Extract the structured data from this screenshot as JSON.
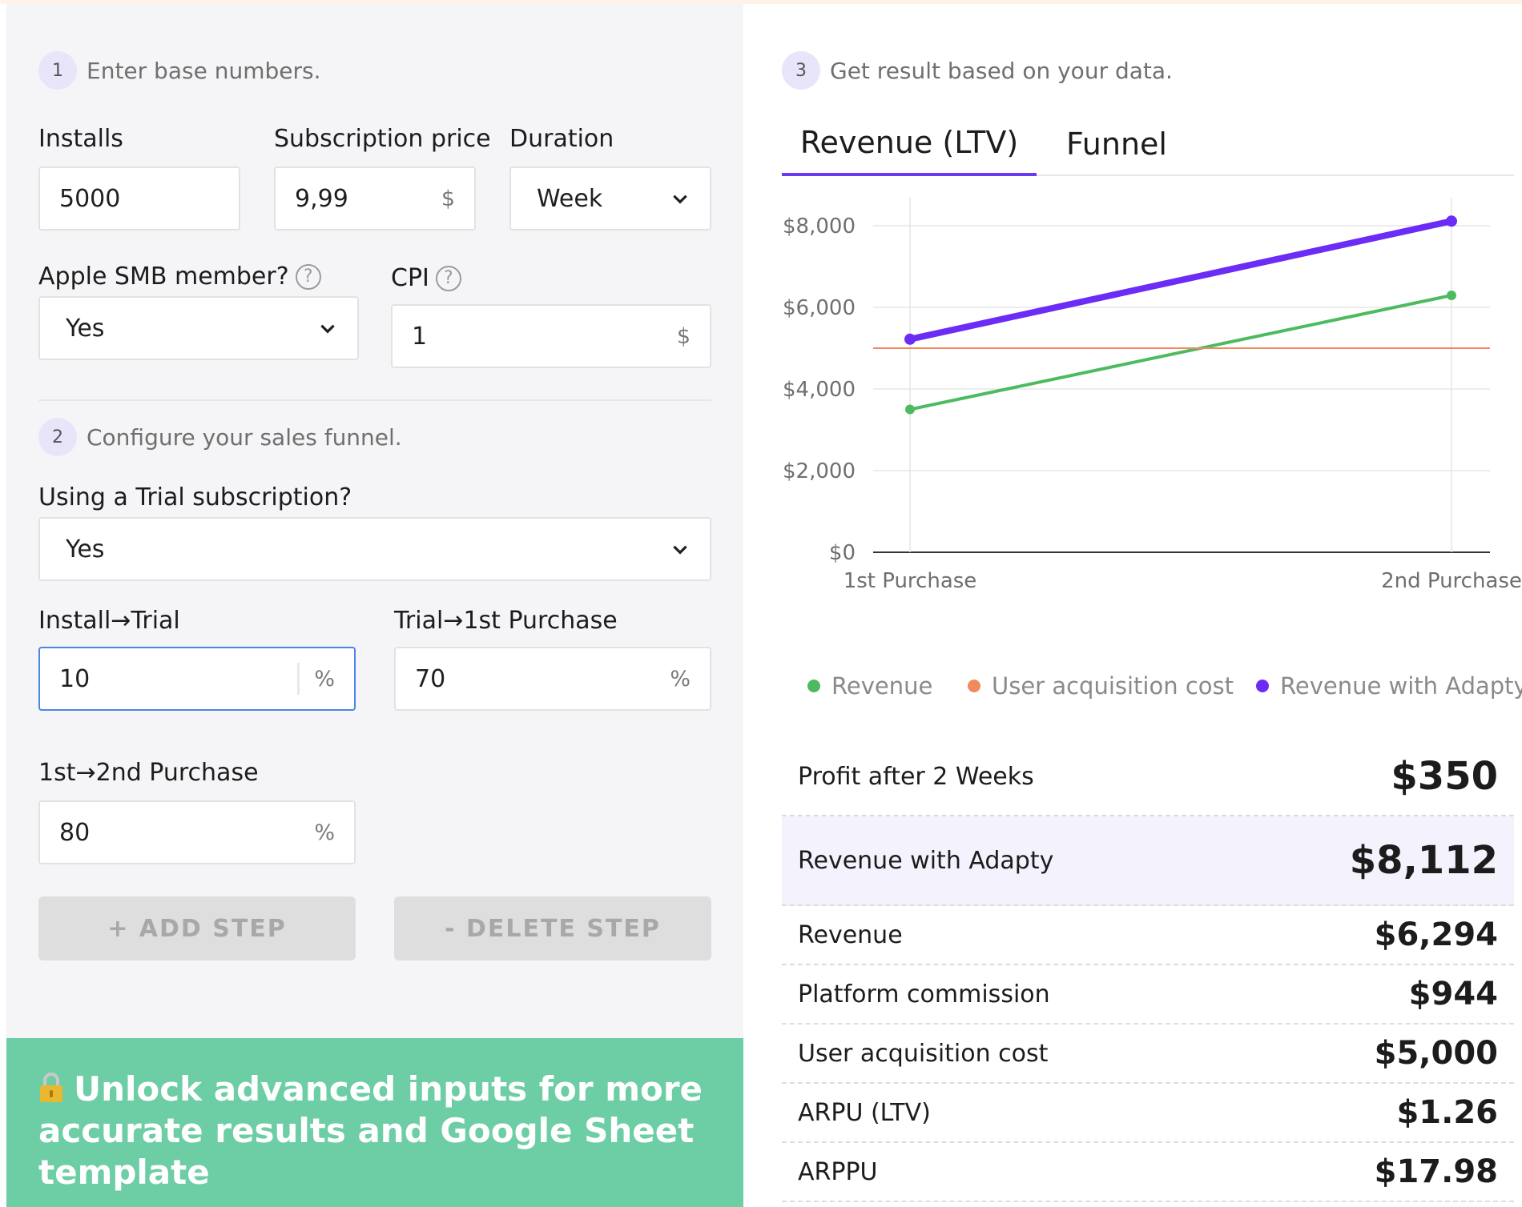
{
  "step1": {
    "num": "1",
    "text": "Enter base numbers."
  },
  "step2": {
    "num": "2",
    "text": "Configure your sales funnel."
  },
  "step3": {
    "num": "3",
    "text": "Get result based on your data."
  },
  "inputs": {
    "installs": {
      "label": "Installs",
      "value": "5000"
    },
    "price": {
      "label": "Subscription price",
      "value": "9,99",
      "unit": "$"
    },
    "duration": {
      "label": "Duration",
      "value": "Week"
    },
    "smb": {
      "label": "Apple SMB member?",
      "value": "Yes"
    },
    "cpi": {
      "label": "CPI",
      "value": "1",
      "unit": "$"
    },
    "trial": {
      "label": "Using a Trial subscription?",
      "value": "Yes"
    },
    "install_trial": {
      "label": "Install→Trial",
      "value": "10",
      "unit": "%"
    },
    "trial_purchase": {
      "label": "Trial→1st Purchase",
      "value": "70",
      "unit": "%"
    },
    "purchase2": {
      "label": "1st→2nd Purchase",
      "value": "80",
      "unit": "%"
    }
  },
  "help_glyph": "?",
  "buttons": {
    "add": "+ ADD STEP",
    "delete": "- DELETE STEP"
  },
  "unlock": {
    "text": "Unlock advanced inputs for more accurate results and Google Sheet template"
  },
  "tabs": [
    {
      "label": "Revenue (LTV)"
    },
    {
      "label": "Funnel"
    }
  ],
  "chart_data": {
    "type": "line",
    "categories": [
      "1st Purchase",
      "2nd Purchase"
    ],
    "y_ticks": [
      "$8,000",
      "$6,000",
      "$4,000",
      "$2,000",
      "$0"
    ],
    "ylim": [
      0,
      8000
    ],
    "series": [
      {
        "name": "Revenue",
        "color": "#4cbb5f",
        "values": [
          3500,
          6294
        ]
      },
      {
        "name": "User acquisition cost",
        "color": "#f08a5d",
        "values": [
          5000,
          5000
        ]
      },
      {
        "name": "Revenue with Adapty",
        "color": "#6b2cf5",
        "values": [
          5220,
          8112
        ]
      }
    ],
    "grid": true,
    "legend": "bottom"
  },
  "results": [
    {
      "label": "Profit after 2 Weeks",
      "value": "$350"
    },
    {
      "label": "Revenue with Adapty",
      "value": "$8,112"
    },
    {
      "label": "Revenue",
      "value": "$6,294"
    },
    {
      "label": "Platform commission",
      "value": "$944"
    },
    {
      "label": "User acquisition cost",
      "value": "$5,000"
    },
    {
      "label": "ARPU (LTV)",
      "value": "$1.26"
    },
    {
      "label": "ARPPU",
      "value": "$17.98"
    }
  ]
}
